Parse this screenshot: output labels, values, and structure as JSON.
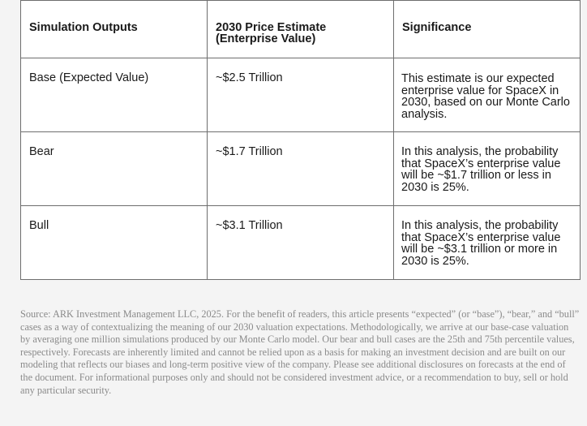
{
  "table": {
    "headers": {
      "outputs": "Simulation Outputs",
      "estimate_line1": "2030 Price Estimate",
      "estimate_line2": "(Enterprise Value)",
      "significance": "Significance"
    },
    "rows": [
      {
        "output": "Base (Expected Value)",
        "estimate": "~$2.5 Trillion",
        "significance": "This estimate is our expected enterprise value for SpaceX in 2030, based on our Monte Carlo analysis."
      },
      {
        "output": "Bear",
        "estimate": "~$1.7 Trillion",
        "significance": "In this analysis, the probability that SpaceX’s enterprise value will be ~$1.7 trillion or less in 2030 is 25%."
      },
      {
        "output": "Bull",
        "estimate": "~$3.1 Trillion",
        "significance": "In this analysis, the probability that SpaceX’s enterprise value will be ~$3.1 trillion or more in 2030 is 25%."
      }
    ]
  },
  "source_note": "Source: ARK Investment Management LLC, 2025. For the benefit of readers, this article presents “expected” (or “base”), “bear,” and “bull” cases as a way of contextualizing the meaning of our 2030 valuation expectations. Methodologically, we arrive at our base-case valuation by averaging one million simulations produced by our Monte Carlo model. Our bear and bull cases are the 25th and 75th percentile values, respectively. Forecasts are inherently limited and cannot be relied upon as a basis for making an investment decision and are built on our modeling that reflects our biases and long-term positive view of the company. Please see additional disclosures on forecasts at the end of the document. For informational purposes only and should not be considered investment advice, or a recommendation to buy, sell or hold any particular security."
}
